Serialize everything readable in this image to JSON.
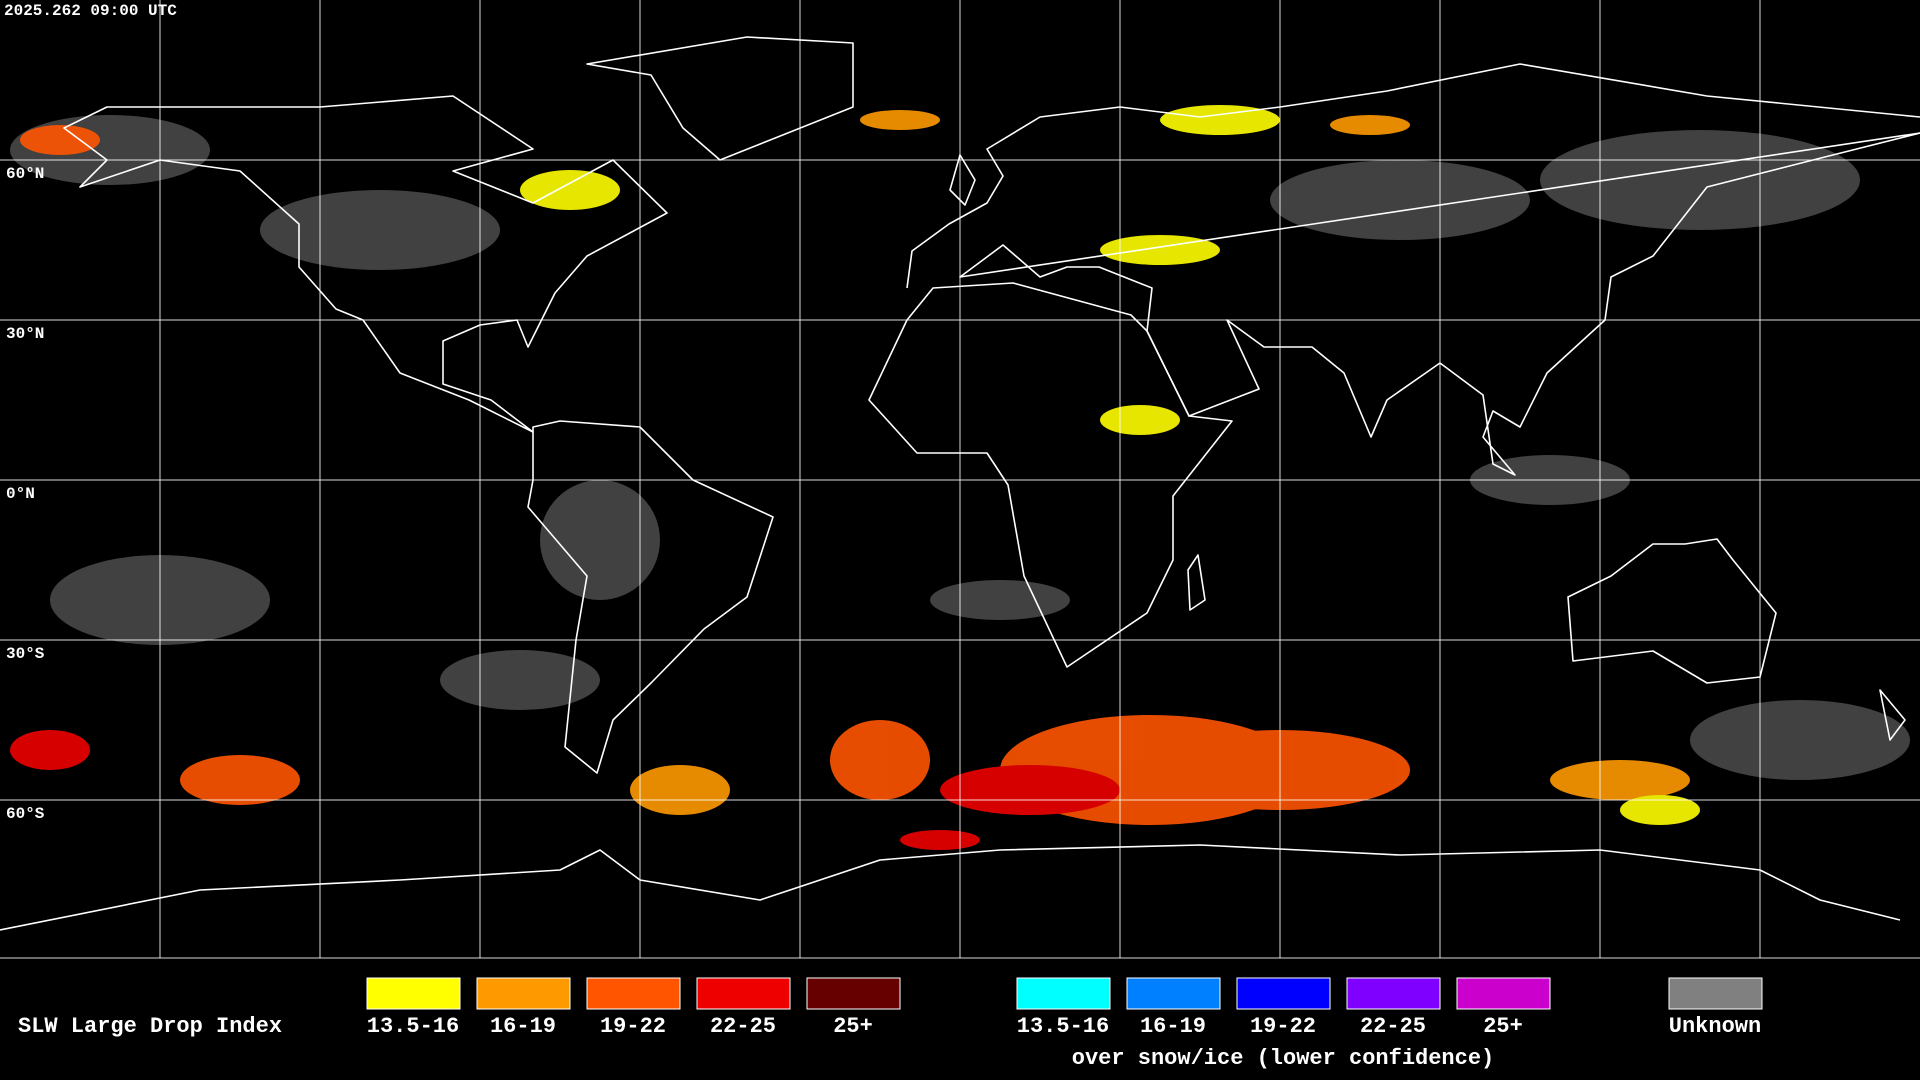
{
  "header": {
    "timestamp": "2025.262 09:00 UTC"
  },
  "lat_labels": [
    "60°N",
    "30°N",
    "0°N",
    "30°S",
    "60°S"
  ],
  "legend": {
    "title": "SLW Large Drop Index",
    "items": [
      {
        "label": "13.5-16",
        "color": "#ffff00"
      },
      {
        "label": "16-19",
        "color": "#ff9900"
      },
      {
        "label": "19-22",
        "color": "#ff5500"
      },
      {
        "label": "22-25",
        "color": "#ee0000"
      },
      {
        "label": "25+",
        "color": "#660000"
      }
    ],
    "snow_items": [
      {
        "label": "13.5-16",
        "color": "#00ffff"
      },
      {
        "label": "16-19",
        "color": "#0080ff"
      },
      {
        "label": "19-22",
        "color": "#0000ff"
      },
      {
        "label": "22-25",
        "color": "#7f00ff"
      },
      {
        "label": "25+",
        "color": "#cc00cc"
      }
    ],
    "snow_caption": "over snow/ice (lower confidence)",
    "unknown": {
      "label": "Unknown",
      "color": "#808080"
    }
  }
}
